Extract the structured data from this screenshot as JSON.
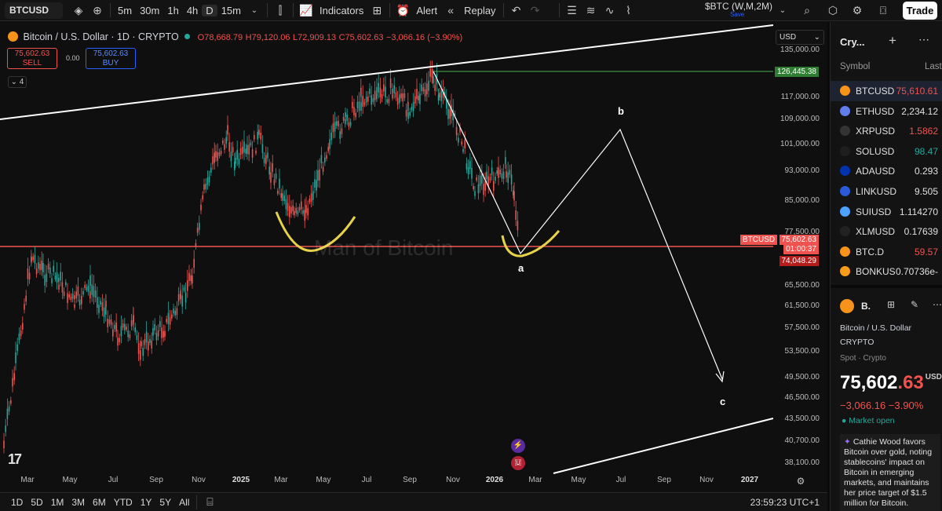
{
  "toolbar": {
    "symbol": "BTCUSD",
    "intervals": [
      "5m",
      "30m",
      "1h",
      "4h",
      "D"
    ],
    "active_interval": "D",
    "interval_15m": "15m",
    "indicators_label": "Indicators",
    "alert_label": "Alert",
    "replay_label": "Replay",
    "btc_wm_label": "$BTC (W,M,2M)",
    "save_label": "Save",
    "trade_label": "Trade"
  },
  "legend": {
    "title": "Bitcoin / U.S. Dollar · 1D · CRYPTO",
    "open": "O78,668.79",
    "high": "H79,120.06",
    "low": "L72,909.13",
    "close": "C75,602.63",
    "change": "−3,066.16 (−3.90%)",
    "sell_price": "75,602.63",
    "sell_label": "SELL",
    "spread": "0.00",
    "buy_price": "75,602.63",
    "buy_label": "BUY",
    "indicator_count": "4"
  },
  "watermark": "Man of Bitcoin",
  "wave_labels": {
    "a": "a",
    "b": "b",
    "c": "c"
  },
  "price_axis": {
    "currency": "USD",
    "ticks": [
      "135,000.00",
      "117,000.00",
      "109,000.00",
      "101,000.00",
      "93,000.00",
      "85,000.00",
      "77,500.00",
      "65,500.00",
      "61,500.00",
      "57,500.00",
      "53,500.00",
      "49,500.00",
      "46,500.00",
      "43,500.00",
      "40,700.00",
      "38,100.00"
    ],
    "high_tag": "126,445.38",
    "symbol_tag": "BTCUSD",
    "last_price_tag": "75,602.63",
    "countdown_tag": "01:00:37",
    "level_tag": "74,048.29"
  },
  "time_axis": {
    "ticks": [
      "Mar",
      "May",
      "Jul",
      "Sep",
      "Nov",
      "2025",
      "Mar",
      "May",
      "Jul",
      "Sep",
      "Nov",
      "2026",
      "Mar",
      "May",
      "Jul",
      "Sep",
      "Nov",
      "2027"
    ]
  },
  "bottom_bar": {
    "ranges": [
      "1D",
      "5D",
      "1M",
      "3M",
      "6M",
      "YTD",
      "1Y",
      "5Y",
      "All"
    ],
    "clock": "23:59:23 UTC+1"
  },
  "watchlist": {
    "title": "Cry...",
    "col_symbol": "Symbol",
    "col_last": "Last",
    "items": [
      {
        "symbol": "BTCUSD",
        "last": "75,610.61",
        "color": "#f7931a",
        "trend": "red"
      },
      {
        "symbol": "ETHUSD",
        "last": "2,234.12",
        "color": "#627eea",
        "trend": "neutral"
      },
      {
        "symbol": "XRPUSD",
        "last": "1.5862",
        "color": "#333333",
        "trend": "red"
      },
      {
        "symbol": "SOLUSD",
        "last": "98.47",
        "color": "#1e1e1e",
        "trend": "green"
      },
      {
        "symbol": "ADAUSD",
        "last": "0.293",
        "color": "#0033ad",
        "trend": "neutral"
      },
      {
        "symbol": "LINKUSD",
        "last": "9.505",
        "color": "#2a5ada",
        "trend": "neutral"
      },
      {
        "symbol": "SUIUSD",
        "last": "1.114270",
        "color": "#4da2ff",
        "trend": "neutral"
      },
      {
        "symbol": "XLMUSD",
        "last": "0.17639",
        "color": "#222222",
        "trend": "neutral"
      },
      {
        "symbol": "BTC.D",
        "last": "59.57",
        "color": "#f7931a",
        "trend": "red"
      },
      {
        "symbol": "BONKUS",
        "last": "0.70736e-",
        "color": "#f79b1a",
        "trend": "neutral"
      }
    ]
  },
  "details": {
    "name": "B.",
    "full_name": "Bitcoin / U.S. Dollar",
    "exchange": "CRYPTO",
    "spot": "Spot · Crypto",
    "price_main": "75,602",
    "price_tail": ".63",
    "currency": "USD",
    "change": "−3,066.16  −3.90%",
    "market_status": "Market open",
    "news": "Cathie Wood favors Bitcoin over gold, noting stablecoins' impact on Bitcoin in emerging markets, and maintains her price target of $1.5 million for Bitcoin."
  },
  "colors": {
    "up": "#26a69a",
    "down": "#ef5350",
    "annotation_yellow": "#e8d24a",
    "accent": "#2962ff"
  }
}
